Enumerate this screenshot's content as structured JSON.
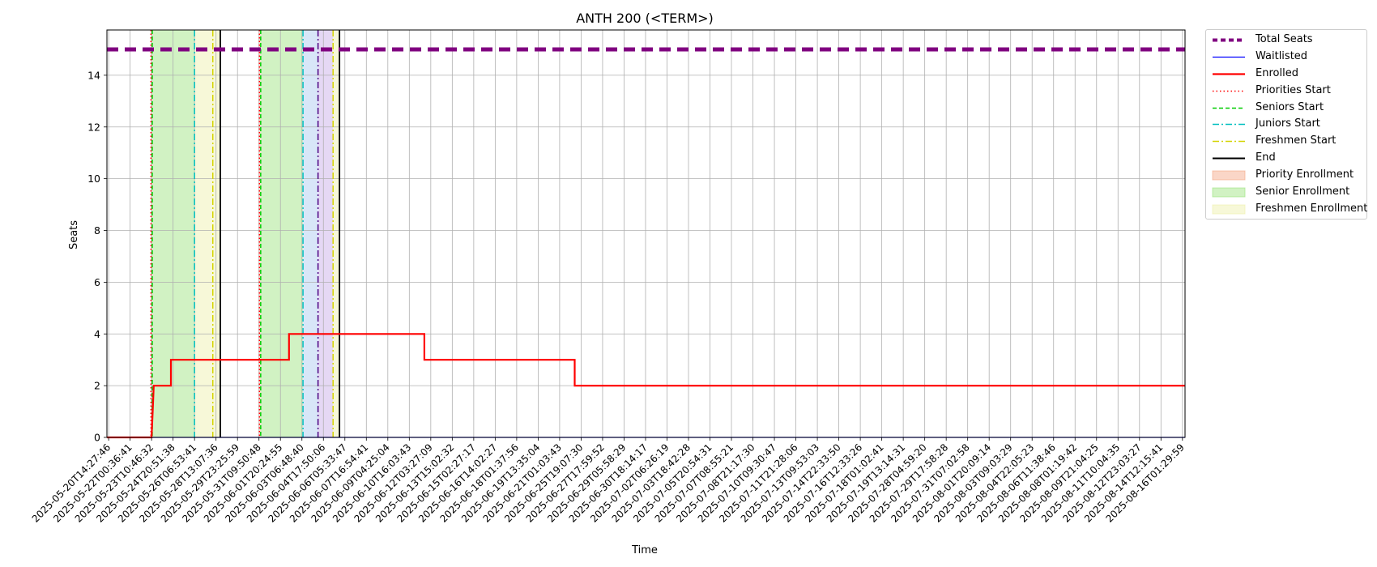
{
  "chart_data": {
    "type": "line",
    "title": "ANTH 200 (<TERM>)",
    "xlabel": "Time",
    "ylabel": "Seats",
    "ylim": [
      0,
      15.75
    ],
    "yticks": [
      0,
      2,
      4,
      6,
      8,
      10,
      12,
      14
    ],
    "grid": true,
    "legend_placement": "outside-right",
    "x_tick_labels": [
      "2025-05-20T14:27:46",
      "2025-05-22T00:36:41",
      "2025-05-23T10:46:32",
      "2025-05-24T20:51:38",
      "2025-05-26T06:53:41",
      "2025-05-28T13:07:36",
      "2025-05-29T23:25:59",
      "2025-05-31T09:50:48",
      "2025-06-01T20:24:55",
      "2025-06-03T06:48:40",
      "2025-06-04T17:50:06",
      "2025-06-06T05:33:47",
      "2025-06-07T16:54:41",
      "2025-06-09T04:25:04",
      "2025-06-10T16:03:43",
      "2025-06-12T03:27:09",
      "2025-06-13T15:02:32",
      "2025-06-15T02:27:17",
      "2025-06-16T14:02:27",
      "2025-06-18T01:37:56",
      "2025-06-19T13:35:04",
      "2025-06-21T01:03:43",
      "2025-06-25T19:07:30",
      "2025-06-27T17:59:52",
      "2025-06-29T05:58:29",
      "2025-06-30T18:14:17",
      "2025-07-02T06:26:19",
      "2025-07-03T18:42:28",
      "2025-07-05T20:54:31",
      "2025-07-07T08:55:21",
      "2025-07-08T21:17:30",
      "2025-07-10T09:30:47",
      "2025-07-11T21:28:06",
      "2025-07-13T09:53:03",
      "2025-07-14T22:33:50",
      "2025-07-16T12:33:26",
      "2025-07-18T01:02:41",
      "2025-07-19T13:14:31",
      "2025-07-28T04:59:20",
      "2025-07-29T17:58:28",
      "2025-07-31T07:02:58",
      "2025-08-01T20:09:14",
      "2025-08-03T09:03:29",
      "2025-08-04T22:05:23",
      "2025-08-06T11:38:46",
      "2025-08-08T01:19:42",
      "2025-08-09T21:04:25",
      "2025-08-11T10:04:35",
      "2025-08-12T23:03:27",
      "2025-08-14T12:15:41",
      "2025-08-16T01:29:59"
    ],
    "x_range_index": [
      -0.08,
      50.12
    ],
    "series": [
      {
        "name": "Total Seats",
        "color": "#800080",
        "style": "dashed-thick",
        "points": [
          [
            -0.08,
            15
          ],
          [
            50.12,
            15
          ]
        ]
      },
      {
        "name": "Waitlisted",
        "color": "#0000ff",
        "style": "solid-thin",
        "points": [
          [
            -0.08,
            0
          ],
          [
            50.12,
            0
          ]
        ]
      },
      {
        "name": "Enrolled",
        "color": "#ff0000",
        "style": "step",
        "points": [
          [
            -0.08,
            0
          ],
          [
            2.0,
            0
          ],
          [
            2.05,
            1
          ],
          [
            2.1,
            2
          ],
          [
            2.9,
            2
          ],
          [
            2.9,
            3
          ],
          [
            8.4,
            3
          ],
          [
            8.4,
            4
          ],
          [
            14.7,
            4
          ],
          [
            14.7,
            3
          ],
          [
            21.7,
            3
          ],
          [
            21.7,
            2
          ],
          [
            50.12,
            2
          ]
        ]
      }
    ],
    "markers": [
      {
        "name": "Priorities Start",
        "color": "#ff0000",
        "style": "dotted",
        "x": [
          1.97,
          7.02
        ]
      },
      {
        "name": "Seniors Start",
        "color": "#00cc00",
        "style": "dashed",
        "x": [
          2.03,
          7.08
        ]
      },
      {
        "name": "Juniors Start",
        "color": "#00bfbf",
        "style": "dashdot",
        "x": [
          4.0,
          9.05
        ]
      },
      {
        "name": "Sophomores Start",
        "color": "#4b0082",
        "style": "dashdot",
        "x": [
          9.75
        ],
        "in_legend": false
      },
      {
        "name": "Freshmen Start",
        "color": "#d4d400",
        "style": "dashdot",
        "x": [
          4.85,
          10.45
        ]
      },
      {
        "name": "End",
        "color": "#000000",
        "style": "solid",
        "x": [
          5.2,
          10.75
        ]
      }
    ],
    "spans": [
      {
        "name": "Priority Enrollment",
        "color": "#f4a582",
        "ranges": [
          [
            1.97,
            2.03
          ],
          [
            7.02,
            7.08
          ]
        ]
      },
      {
        "name": "Senior Enrollment",
        "color": "#98e27a",
        "ranges": [
          [
            2.03,
            4.0
          ],
          [
            7.08,
            9.05
          ]
        ]
      },
      {
        "name": "Junior Enrollment",
        "color": "#a8c8f0",
        "ranges": [
          [
            9.05,
            9.75
          ]
        ],
        "in_legend": false
      },
      {
        "name": "Sophomore Enrollment",
        "color": "#c6a8e6",
        "ranges": [
          [
            9.75,
            10.45
          ]
        ],
        "in_legend": false
      },
      {
        "name": "Freshmen Enrollment",
        "color": "#eef0a8",
        "ranges": [
          [
            4.0,
            5.2
          ],
          [
            10.45,
            10.75
          ]
        ]
      }
    ]
  },
  "legend": {
    "items": [
      {
        "label": "Total Seats",
        "kind": "line",
        "color": "#800080",
        "dash": "6,4",
        "width": 4
      },
      {
        "label": "Waitlisted",
        "kind": "line",
        "color": "#0000ff",
        "dash": "",
        "width": 1.2
      },
      {
        "label": "Enrolled",
        "kind": "line",
        "color": "#ff0000",
        "dash": "",
        "width": 2.2
      },
      {
        "label": "Priorities Start",
        "kind": "line",
        "color": "#ff0000",
        "dash": "1.5,3",
        "width": 1.5
      },
      {
        "label": "Seniors Start",
        "kind": "line",
        "color": "#00cc00",
        "dash": "5,3",
        "width": 1.5
      },
      {
        "label": "Juniors Start",
        "kind": "line",
        "color": "#00bfbf",
        "dash": "8,3,2,3",
        "width": 1.5
      },
      {
        "label": "Freshmen Start",
        "kind": "line",
        "color": "#d4d400",
        "dash": "8,3,2,3",
        "width": 1.5
      },
      {
        "label": "End",
        "kind": "line",
        "color": "#000000",
        "dash": "",
        "width": 2
      },
      {
        "label": "Priority Enrollment",
        "kind": "patch",
        "color": "#f4a582"
      },
      {
        "label": "Senior Enrollment",
        "kind": "patch",
        "color": "#98e27a"
      },
      {
        "label": "Freshmen Enrollment",
        "kind": "patch",
        "color": "#eef0a8"
      }
    ]
  }
}
